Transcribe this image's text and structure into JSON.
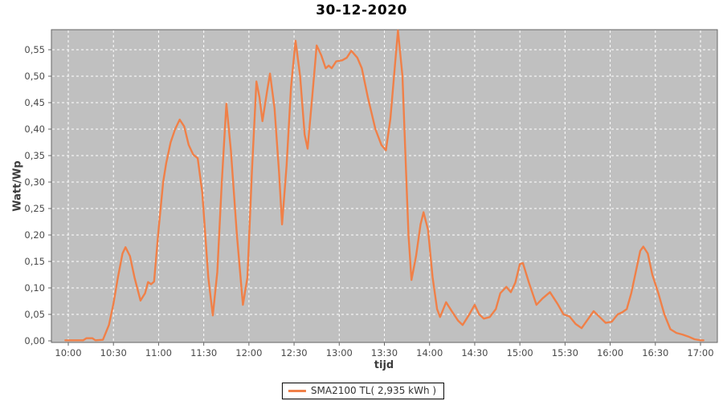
{
  "chart_data": {
    "type": "line",
    "title": "30-12-2020",
    "xlabel": "tijd",
    "ylabel": "Watt/Wp",
    "x_ticks": [
      "10:00",
      "10:30",
      "11:00",
      "11:30",
      "12:00",
      "12:30",
      "13:00",
      "13:30",
      "14:00",
      "14:30",
      "15:00",
      "15:30",
      "16:00",
      "16:30",
      "17:00"
    ],
    "y_ticks": [
      "0,00",
      "0,05",
      "0,10",
      "0,15",
      "0,20",
      "0,25",
      "0,30",
      "0,35",
      "0,40",
      "0,45",
      "0,50",
      "0,55"
    ],
    "xlim": [
      "09:49",
      "17:11"
    ],
    "ylim": [
      0,
      0.59
    ],
    "grid": "white dashed gridlines on gray plot background",
    "legend_position": "bottom-center",
    "colors": {
      "series": "#F08048",
      "plot_background": "#C0C0C0",
      "gridline": "#FFFFFF",
      "frame": "#666666",
      "tick_label": "#4a4a4a",
      "title": "#000000"
    },
    "series": [
      {
        "name": "SMA2100 TL( 2,935 kWh )",
        "color": "#F08048",
        "points": [
          [
            "09:58",
            0.001
          ],
          [
            "10:05",
            0.001
          ],
          [
            "10:10",
            0.001
          ],
          [
            "10:12",
            0.005
          ],
          [
            "10:16",
            0.005
          ],
          [
            "10:18",
            0.001
          ],
          [
            "10:23",
            0.002
          ],
          [
            "10:27",
            0.03
          ],
          [
            "10:30",
            0.07
          ],
          [
            "10:33",
            0.12
          ],
          [
            "10:36",
            0.165
          ],
          [
            "10:38",
            0.177
          ],
          [
            "10:41",
            0.16
          ],
          [
            "10:44",
            0.12
          ],
          [
            "10:48",
            0.076
          ],
          [
            "10:51",
            0.09
          ],
          [
            "10:53",
            0.111
          ],
          [
            "10:55",
            0.107
          ],
          [
            "10:57",
            0.112
          ],
          [
            "11:00",
            0.21
          ],
          [
            "11:03",
            0.3
          ],
          [
            "11:05",
            0.335
          ],
          [
            "11:08",
            0.375
          ],
          [
            "11:11",
            0.4
          ],
          [
            "11:14",
            0.418
          ],
          [
            "11:17",
            0.405
          ],
          [
            "11:20",
            0.37
          ],
          [
            "11:23",
            0.352
          ],
          [
            "11:26",
            0.345
          ],
          [
            "11:29",
            0.28
          ],
          [
            "11:33",
            0.12
          ],
          [
            "11:36",
            0.048
          ],
          [
            "11:39",
            0.13
          ],
          [
            "11:42",
            0.3
          ],
          [
            "11:45",
            0.448
          ],
          [
            "11:48",
            0.36
          ],
          [
            "11:52",
            0.2
          ],
          [
            "11:56",
            0.068
          ],
          [
            "11:59",
            0.12
          ],
          [
            "12:02",
            0.32
          ],
          [
            "12:05",
            0.49
          ],
          [
            "12:07",
            0.46
          ],
          [
            "12:09",
            0.415
          ],
          [
            "12:12",
            0.47
          ],
          [
            "12:14",
            0.505
          ],
          [
            "12:17",
            0.44
          ],
          [
            "12:20",
            0.32
          ],
          [
            "12:22",
            0.22
          ],
          [
            "12:25",
            0.33
          ],
          [
            "12:28",
            0.48
          ],
          [
            "12:31",
            0.567
          ],
          [
            "12:34",
            0.5
          ],
          [
            "12:37",
            0.39
          ],
          [
            "12:39",
            0.363
          ],
          [
            "12:42",
            0.46
          ],
          [
            "12:45",
            0.558
          ],
          [
            "12:48",
            0.54
          ],
          [
            "12:51",
            0.515
          ],
          [
            "12:53",
            0.52
          ],
          [
            "12:55",
            0.515
          ],
          [
            "12:58",
            0.528
          ],
          [
            "13:02",
            0.53
          ],
          [
            "13:05",
            0.535
          ],
          [
            "13:08",
            0.548
          ],
          [
            "13:12",
            0.535
          ],
          [
            "13:15",
            0.515
          ],
          [
            "13:19",
            0.46
          ],
          [
            "13:24",
            0.4
          ],
          [
            "13:28",
            0.37
          ],
          [
            "13:31",
            0.36
          ],
          [
            "13:34",
            0.42
          ],
          [
            "13:37",
            0.52
          ],
          [
            "13:39",
            0.588
          ],
          [
            "13:42",
            0.5
          ],
          [
            "13:44",
            0.35
          ],
          [
            "13:46",
            0.2
          ],
          [
            "13:48",
            0.115
          ],
          [
            "13:51",
            0.16
          ],
          [
            "13:54",
            0.22
          ],
          [
            "13:56",
            0.243
          ],
          [
            "13:59",
            0.21
          ],
          [
            "14:02",
            0.12
          ],
          [
            "14:05",
            0.06
          ],
          [
            "14:07",
            0.045
          ],
          [
            "14:11",
            0.073
          ],
          [
            "14:15",
            0.055
          ],
          [
            "14:19",
            0.038
          ],
          [
            "14:22",
            0.03
          ],
          [
            "14:26",
            0.048
          ],
          [
            "14:30",
            0.068
          ],
          [
            "14:33",
            0.05
          ],
          [
            "14:36",
            0.042
          ],
          [
            "14:40",
            0.045
          ],
          [
            "14:44",
            0.06
          ],
          [
            "14:47",
            0.09
          ],
          [
            "14:51",
            0.102
          ],
          [
            "14:54",
            0.092
          ],
          [
            "14:57",
            0.11
          ],
          [
            "15:00",
            0.145
          ],
          [
            "15:02",
            0.147
          ],
          [
            "15:06",
            0.11
          ],
          [
            "15:11",
            0.068
          ],
          [
            "15:15",
            0.08
          ],
          [
            "15:20",
            0.092
          ],
          [
            "15:25",
            0.07
          ],
          [
            "15:29",
            0.05
          ],
          [
            "15:33",
            0.046
          ],
          [
            "15:37",
            0.032
          ],
          [
            "15:41",
            0.024
          ],
          [
            "15:45",
            0.04
          ],
          [
            "15:49",
            0.056
          ],
          [
            "15:53",
            0.045
          ],
          [
            "15:57",
            0.034
          ],
          [
            "16:01",
            0.036
          ],
          [
            "16:05",
            0.05
          ],
          [
            "16:08",
            0.054
          ],
          [
            "16:11",
            0.06
          ],
          [
            "16:14",
            0.09
          ],
          [
            "16:17",
            0.13
          ],
          [
            "16:20",
            0.17
          ],
          [
            "16:22",
            0.178
          ],
          [
            "16:25",
            0.165
          ],
          [
            "16:28",
            0.125
          ],
          [
            "16:32",
            0.09
          ],
          [
            "16:36",
            0.05
          ],
          [
            "16:40",
            0.022
          ],
          [
            "16:44",
            0.015
          ],
          [
            "16:48",
            0.012
          ],
          [
            "16:52",
            0.008
          ],
          [
            "16:56",
            0.003
          ],
          [
            "17:00",
            0.001
          ],
          [
            "17:02",
            0.001
          ]
        ]
      }
    ],
    "legend": {
      "entries": [
        {
          "label": "SMA2100 TL( 2,935 kWh )",
          "color": "#F08048"
        }
      ]
    }
  }
}
